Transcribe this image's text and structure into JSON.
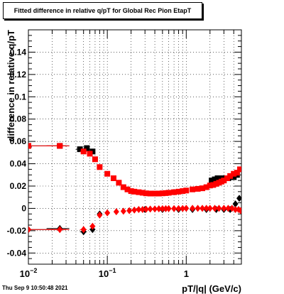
{
  "chart_data": {
    "type": "scatter",
    "title": "Fitted difference in relative q/pT for Global Rec Pion EtapT",
    "xlabel": "pT/|q| (GeV/c)",
    "ylabel": "difference in relative q/pT",
    "xscale": "log",
    "xlim": [
      0.01,
      5.0
    ],
    "ylim": [
      -0.05,
      0.16
    ],
    "grid": true,
    "x_ticks": [
      {
        "value": 0.01,
        "base": "10",
        "exp": "−2"
      },
      {
        "value": 0.1,
        "base": "10",
        "exp": "−1"
      },
      {
        "value": 1,
        "base": "1",
        "exp": ""
      }
    ],
    "y_ticks": [
      {
        "value": -0.04,
        "label": "-0.04"
      },
      {
        "value": -0.02,
        "label": "-0.02"
      },
      {
        "value": 0,
        "label": "0"
      },
      {
        "value": 0.02,
        "label": "0.02"
      },
      {
        "value": 0.04,
        "label": "0.04"
      },
      {
        "value": 0.06,
        "label": "0.06"
      },
      {
        "value": 0.08,
        "label": "0.08"
      },
      {
        "value": 0.1,
        "label": "0.1"
      },
      {
        "value": 0.12,
        "label": "0.12"
      },
      {
        "value": 0.14,
        "label": "0.14"
      }
    ],
    "series": [
      {
        "marker": "square",
        "color": "#000000",
        "x": [
          0.01,
          0.025,
          0.045,
          0.055,
          0.065,
          2.1,
          2.3,
          2.5,
          2.7,
          2.9,
          3.1,
          3.4,
          3.7,
          4.0,
          4.4
        ],
        "y": [
          0.056,
          0.056,
          0.053,
          0.054,
          0.051,
          0.025,
          0.026,
          0.027,
          0.027,
          0.027,
          0.027,
          0.027,
          0.028,
          0.028,
          0.03
        ],
        "xerr_lo": [
          0.0,
          0.008,
          0.005,
          0.005,
          0.005,
          0,
          0,
          0,
          0,
          0,
          0,
          0,
          0,
          0,
          0
        ],
        "xerr_hi": [
          0.02,
          0.008,
          0.005,
          0.005,
          0.005,
          0,
          0,
          0,
          0,
          0,
          0,
          0,
          0,
          0,
          0
        ]
      },
      {
        "marker": "diamond",
        "color": "#000000",
        "x": [
          0.01,
          0.025,
          0.05,
          0.065,
          0.08,
          0.3,
          0.5,
          0.8,
          1.2,
          1.8,
          2.4,
          3.0,
          3.6,
          4.2,
          4.7
        ],
        "y": [
          -0.019,
          -0.018,
          -0.021,
          -0.019,
          -0.005,
          -0.001,
          -0.001,
          -0.001,
          -0.001,
          -0.001,
          -0.001,
          -0.001,
          -0.001,
          0.004,
          0.009
        ],
        "xerr_lo": [
          0.0,
          0.008,
          0.005,
          0.005,
          0.0,
          0,
          0,
          0,
          0,
          0,
          0,
          0,
          0,
          0,
          0
        ],
        "xerr_hi": [
          0.02,
          0.008,
          0.005,
          0.005,
          0.0,
          0,
          0,
          0,
          0,
          0,
          0,
          0,
          0,
          0,
          0
        ]
      },
      {
        "marker": "square",
        "color": "#ff0000",
        "x": [
          0.01,
          0.025,
          0.05,
          0.06,
          0.07,
          0.08,
          0.1,
          0.12,
          0.14,
          0.16,
          0.18,
          0.2,
          0.22,
          0.25,
          0.28,
          0.31,
          0.35,
          0.4,
          0.45,
          0.5,
          0.55,
          0.6,
          0.7,
          0.8,
          0.9,
          1.0,
          1.2,
          1.4,
          1.6,
          1.8,
          2.0,
          2.2,
          2.4,
          2.6,
          2.8,
          3.0,
          3.3,
          3.6,
          4.0,
          4.4,
          4.8
        ],
        "y": [
          0.056,
          0.056,
          0.051,
          0.049,
          0.044,
          0.037,
          0.031,
          0.027,
          0.023,
          0.019,
          0.017,
          0.0155,
          0.015,
          0.0145,
          0.014,
          0.0135,
          0.0133,
          0.0133,
          0.0133,
          0.0135,
          0.0137,
          0.014,
          0.0145,
          0.015,
          0.0155,
          0.016,
          0.017,
          0.0175,
          0.018,
          0.019,
          0.0205,
          0.021,
          0.022,
          0.023,
          0.024,
          0.025,
          0.027,
          0.029,
          0.031,
          0.032,
          0.035
        ],
        "xerr_lo": [
          0.0,
          0.008,
          0.005,
          0,
          0,
          0,
          0,
          0,
          0,
          0,
          0,
          0,
          0,
          0,
          0,
          0,
          0,
          0,
          0,
          0,
          0,
          0,
          0,
          0,
          0,
          0,
          0,
          0,
          0,
          0,
          0,
          0,
          0,
          0,
          0,
          0,
          0,
          0,
          0,
          0,
          0
        ],
        "xerr_hi": [
          0.02,
          0.008,
          0.005,
          0,
          0,
          0,
          0,
          0,
          0,
          0,
          0,
          0,
          0,
          0,
          0,
          0,
          0,
          0,
          0,
          0,
          0,
          0,
          0,
          0,
          0,
          0,
          0,
          0,
          0,
          0,
          0,
          0,
          0,
          0,
          0,
          0,
          0,
          0,
          0,
          0,
          0
        ]
      },
      {
        "marker": "diamond",
        "color": "#ff0000",
        "x": [
          0.01,
          0.025,
          0.05,
          0.065,
          0.08,
          0.1,
          0.13,
          0.16,
          0.19,
          0.22,
          0.25,
          0.28,
          0.31,
          0.35,
          0.4,
          0.45,
          0.5,
          0.55,
          0.6,
          0.7,
          0.8,
          0.9,
          1.0,
          1.2,
          1.4,
          1.6,
          1.8,
          2.0,
          2.3,
          2.6,
          3.0,
          3.4,
          3.8,
          4.2,
          4.6,
          4.9
        ],
        "y": [
          -0.019,
          -0.019,
          -0.019,
          -0.016,
          -0.006,
          -0.004,
          -0.003,
          -0.0025,
          -0.002,
          -0.0015,
          -0.001,
          -0.001,
          -0.0008,
          -0.0006,
          -0.0005,
          -0.0004,
          -0.0003,
          -0.0003,
          -0.0002,
          -0.0002,
          -0.0002,
          -0.0001,
          0.0,
          0.0,
          0.0,
          0.0,
          0.0,
          0.0,
          0.0,
          0.0,
          0.0,
          0.0,
          0.0,
          -0.001,
          -0.001,
          -0.002
        ],
        "xerr_lo": [
          0.0,
          0.008,
          0.005,
          0,
          0,
          0,
          0,
          0,
          0,
          0,
          0,
          0,
          0,
          0,
          0,
          0,
          0,
          0,
          0,
          0,
          0,
          0,
          0,
          0,
          0,
          0,
          0,
          0,
          0,
          0,
          0,
          0,
          0,
          0,
          0,
          0
        ],
        "xerr_hi": [
          0.02,
          0.008,
          0.005,
          0,
          0,
          0,
          0,
          0,
          0,
          0,
          0,
          0,
          0,
          0,
          0,
          0,
          0,
          0,
          0,
          0,
          0,
          0,
          0,
          0,
          0,
          0,
          0,
          0,
          0,
          0,
          0,
          0,
          0,
          0,
          0,
          0
        ]
      }
    ]
  },
  "footer": {
    "timestamp": "Thu Sep  9 10:50:48 2021"
  }
}
